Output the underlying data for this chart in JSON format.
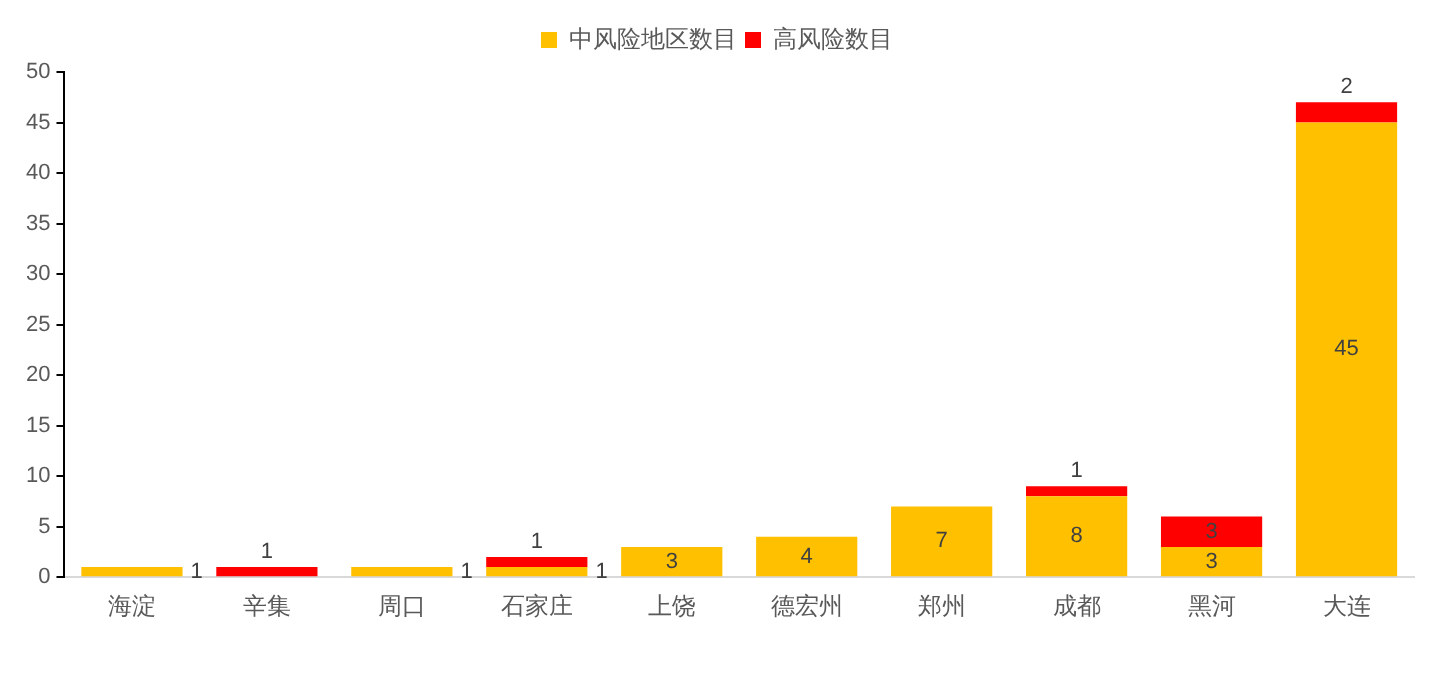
{
  "chart_data": {
    "type": "bar",
    "stacked": true,
    "categories": [
      "海淀",
      "辛集",
      "周口",
      "石家庄",
      "上饶",
      "德宏州",
      "郑州",
      "成都",
      "黑河",
      "大连"
    ],
    "series": [
      {
        "name": "中风险地区数目",
        "color": "#ffc000",
        "values": [
          1,
          null,
          1,
          1,
          3,
          4,
          7,
          8,
          3,
          45
        ],
        "value_labels": [
          "1",
          null,
          "1",
          "1",
          "3",
          "4",
          "7",
          "8",
          "3",
          "45"
        ]
      },
      {
        "name": "高风险数目",
        "color": "#ff0000",
        "values": [
          null,
          1,
          null,
          1,
          null,
          null,
          null,
          1,
          3,
          2
        ],
        "value_labels": [
          null,
          "1",
          null,
          "1",
          null,
          null,
          null,
          "1",
          "3",
          "2"
        ]
      }
    ],
    "ylim": [
      0,
      50
    ],
    "yticks": [
      0,
      5,
      10,
      15,
      20,
      25,
      30,
      35,
      40,
      45,
      50
    ],
    "grid": false,
    "legend": "top"
  }
}
